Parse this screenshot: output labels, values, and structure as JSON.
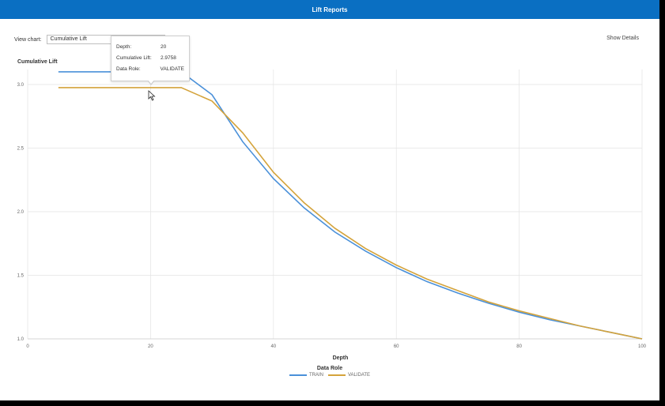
{
  "window": {
    "title": "Lift Reports"
  },
  "controls": {
    "view_chart_label": "View chart:",
    "view_chart_value": "Cumulative Lift",
    "show_details": "Show Details"
  },
  "tooltip": {
    "depth_label": "Depth:",
    "depth_value": "20",
    "lift_label": "Cumulative Lift:",
    "lift_value": "2.9758",
    "role_label": "Data Role:",
    "role_value": "VALIDATE"
  },
  "colors": {
    "title_bar": "#0a6fc2",
    "train": "#4a90d9",
    "validate": "#d4a33b"
  },
  "chart_data": {
    "type": "line",
    "title": "Cumulative Lift",
    "xlabel": "Depth",
    "ylabel": "",
    "xlim": [
      0,
      100
    ],
    "ylim": [
      1.0,
      3.05
    ],
    "x_ticks": [
      "0",
      "20",
      "40",
      "60",
      "80",
      "100"
    ],
    "y_ticks": [
      "1.0",
      "1.5",
      "2.0",
      "2.5",
      "3.0"
    ],
    "legend_title": "Data Role",
    "legend_position": "bottom",
    "grid": true,
    "series": [
      {
        "name": "TRAIN",
        "x": [
          5,
          10,
          15,
          20,
          25,
          30,
          35,
          40,
          45,
          50,
          55,
          60,
          65,
          70,
          75,
          80,
          85,
          90,
          95,
          100
        ],
        "y": [
          3.1,
          3.1,
          3.1,
          3.1,
          3.1,
          2.92,
          2.55,
          2.26,
          2.03,
          1.84,
          1.69,
          1.56,
          1.45,
          1.36,
          1.28,
          1.21,
          1.15,
          1.1,
          1.05,
          1.0
        ]
      },
      {
        "name": "VALIDATE",
        "x": [
          5,
          10,
          15,
          20,
          25,
          30,
          35,
          40,
          45,
          50,
          55,
          60,
          65,
          70,
          75,
          80,
          85,
          90,
          95,
          100
        ],
        "y": [
          2.9758,
          2.9758,
          2.9758,
          2.9758,
          2.9758,
          2.87,
          2.62,
          2.31,
          2.07,
          1.87,
          1.71,
          1.58,
          1.47,
          1.38,
          1.29,
          1.22,
          1.16,
          1.1,
          1.05,
          1.0
        ]
      }
    ]
  }
}
